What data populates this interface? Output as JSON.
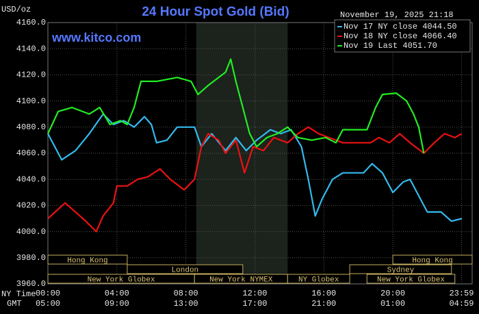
{
  "chart_data": {
    "type": "line",
    "title": "24 Hour Spot Gold (Bid)",
    "unit_label": "USD/oz",
    "timestamp": "November 19, 2025 21:18",
    "website": "www.kitco.com",
    "x_axis_labels": [
      "NY Time",
      "GMT"
    ],
    "xlim": [
      0,
      24.6
    ],
    "xticks": [
      {
        "value": 0,
        "label": "00:00"
      },
      {
        "value": 4,
        "label": "04:00"
      },
      {
        "value": 8,
        "label": "08:00"
      },
      {
        "value": 12,
        "label": "12:00"
      },
      {
        "value": 16,
        "label": "16:00"
      },
      {
        "value": 20,
        "label": "20:00"
      },
      {
        "value": 23.983,
        "label": "23:59"
      }
    ],
    "gmt_labels": [
      "05:00",
      "09:00",
      "13:00",
      "17:00",
      "21:00",
      "01:00",
      "04:59"
    ],
    "ylim": [
      3960,
      4160
    ],
    "yticks": [
      {
        "value": 3960,
        "label": "3960.0"
      },
      {
        "value": 3980,
        "label": "3980.0"
      },
      {
        "value": 4000,
        "label": "4000.0"
      },
      {
        "value": 4020,
        "label": "4020.0"
      },
      {
        "value": 4040,
        "label": "4040.0"
      },
      {
        "value": 4060,
        "label": "4060.0"
      },
      {
        "value": 4080,
        "label": "4080.0"
      },
      {
        "value": 4100,
        "label": "4100.0"
      },
      {
        "value": 4120,
        "label": "4120.0"
      },
      {
        "value": 4140,
        "label": "4140.0"
      },
      {
        "value": 4160,
        "label": "4160.0"
      }
    ],
    "grid": true,
    "shaded": [
      8.6,
      13.9
    ],
    "sessions": [
      {
        "name": "Hong Kong",
        "row": 0,
        "start": 0,
        "end": 4.6
      },
      {
        "name": "Hong Kong",
        "row": 0,
        "start": 20.0,
        "end": 24.6
      },
      {
        "name": "London",
        "row": 1,
        "start": 4.6,
        "end": 11.3
      },
      {
        "name": "Sydney",
        "row": 1,
        "start": 17.5,
        "end": 23.4
      },
      {
        "name": "New York Globex",
        "row": 2,
        "start": 0,
        "end": 8.5
      },
      {
        "name": "New York NYMEX",
        "row": 2,
        "start": 8.5,
        "end": 13.9
      },
      {
        "name": "NY Globex",
        "row": 2,
        "start": 13.9,
        "end": 17.5
      },
      {
        "name": "New York Globex",
        "row": 2,
        "start": 18.5,
        "end": 23.6
      }
    ],
    "series": [
      {
        "name": "Nov 17 NY close 4044.50",
        "color": "#33bbee",
        "x": [
          0,
          0.8,
          1.6,
          2.4,
          3.2,
          3.8,
          4.4,
          5.0,
          5.6,
          6.0,
          6.3,
          6.9,
          7.5,
          8.5,
          8.9,
          9.5,
          10.3,
          10.9,
          11.5,
          12.1,
          12.9,
          13.5,
          14.1,
          14.7,
          15.1,
          15.5,
          15.9,
          16.5,
          17.1,
          18.3,
          18.8,
          19.4,
          20.0,
          20.6,
          21.0,
          21.4,
          22.0,
          22.8,
          23.4,
          24.0
        ],
        "values": [
          4075,
          4055,
          4062,
          4075,
          4090,
          4082,
          4085,
          4080,
          4088,
          4082,
          4068,
          4070,
          4080,
          4080,
          4065,
          4075,
          4062,
          4072,
          4062,
          4070,
          4078,
          4075,
          4078,
          4065,
          4040,
          4012,
          4025,
          4040,
          4045,
          4045,
          4052,
          4045,
          4030,
          4038,
          4040,
          4030,
          4015,
          4015,
          4008,
          4010
        ]
      },
      {
        "name": "Nov 18 NY close 4066.40",
        "color": "#ee1111",
        "x": [
          0,
          1.0,
          1.6,
          2.2,
          2.8,
          3.2,
          3.8,
          4.0,
          4.6,
          5.2,
          5.8,
          6.5,
          7.1,
          7.9,
          8.5,
          8.9,
          9.3,
          9.9,
          10.3,
          10.9,
          11.4,
          11.9,
          12.5,
          13.1,
          13.9,
          14.5,
          15.1,
          15.7,
          16.3,
          17.1,
          18.7,
          19.2,
          19.8,
          20.4,
          21.0,
          21.8,
          22.4,
          23.0,
          23.6,
          24.0
        ],
        "values": [
          4010,
          4022,
          4015,
          4008,
          4000,
          4012,
          4022,
          4035,
          4035,
          4040,
          4042,
          4048,
          4040,
          4032,
          4040,
          4065,
          4075,
          4070,
          4060,
          4070,
          4045,
          4065,
          4062,
          4072,
          4068,
          4075,
          4080,
          4075,
          4072,
          4068,
          4068,
          4072,
          4068,
          4075,
          4068,
          4060,
          4068,
          4075,
          4072,
          4075
        ]
      },
      {
        "name": "Nov 19 Last 4051.70",
        "color": "#22ee22",
        "x": [
          0,
          0.6,
          1.4,
          2.4,
          3.0,
          3.6,
          4.2,
          4.6,
          5.0,
          5.4,
          6.3,
          7.5,
          8.3,
          8.7,
          9.3,
          9.9,
          10.3,
          10.6,
          10.9,
          11.3,
          11.7,
          12.1,
          12.7,
          13.3,
          13.9,
          14.5,
          15.3,
          16.1,
          16.7,
          17.1,
          18.5,
          19.0,
          19.4,
          20.2,
          20.8,
          21.2,
          21.5,
          21.8
        ],
        "values": [
          4075,
          4092,
          4095,
          4090,
          4095,
          4082,
          4085,
          4082,
          4095,
          4115,
          4115,
          4118,
          4115,
          4105,
          4112,
          4118,
          4122,
          4132,
          4115,
          4095,
          4075,
          4065,
          4072,
          4075,
          4080,
          4072,
          4070,
          4072,
          4068,
          4078,
          4078,
          4095,
          4105,
          4106,
          4100,
          4090,
          4080,
          4060
        ]
      }
    ]
  }
}
